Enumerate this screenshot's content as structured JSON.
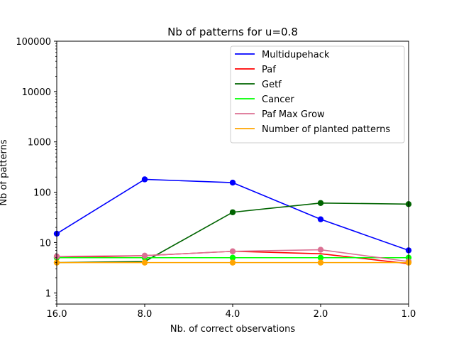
{
  "chart_data": {
    "type": "line",
    "title": "Nb of patterns for u=0.8",
    "xlabel": "Nb. of correct observations",
    "ylabel": "Nb of patterns",
    "x": [
      16.0,
      8.0,
      4.0,
      2.0,
      1.0
    ],
    "x_tick_labels": [
      "16.0",
      "8.0",
      "4.0",
      "2.0",
      "1.0"
    ],
    "x_scale": "log2-reversed",
    "y_scale": "log",
    "ylim": [
      0.6,
      100000
    ],
    "y_ticks": [
      1,
      10,
      100,
      1000,
      10000,
      100000
    ],
    "y_tick_labels": [
      "1",
      "10",
      "100",
      "1000",
      "10000",
      "100000"
    ],
    "grid": false,
    "legend_position": "top-right",
    "series": [
      {
        "name": "Multidupehack",
        "color": "#0000ff",
        "values": [
          15,
          180,
          155,
          29,
          7
        ],
        "markers": [
          true,
          true,
          true,
          true,
          true
        ]
      },
      {
        "name": "Paf",
        "color": "#ff0000",
        "values": [
          5,
          5.5,
          6.7,
          6,
          3.8
        ],
        "markers": [
          false,
          false,
          false,
          false,
          false
        ]
      },
      {
        "name": "Getf",
        "color": "#006400",
        "values": [
          4,
          4.2,
          40,
          61,
          58
        ],
        "markers": [
          false,
          false,
          true,
          true,
          true
        ]
      },
      {
        "name": "Cancer",
        "color": "#00ff00",
        "values": [
          5,
          5,
          5,
          5,
          5
        ],
        "markers": [
          true,
          true,
          true,
          true,
          true
        ]
      },
      {
        "name": "Paf Max Grow",
        "color": "#db7093",
        "values": [
          5.3,
          5.5,
          6.7,
          7.2,
          4.2
        ],
        "markers": [
          true,
          true,
          true,
          true,
          true
        ]
      },
      {
        "name": "Number of planted patterns",
        "color": "#ffa500",
        "values": [
          4,
          4,
          4,
          4,
          4
        ],
        "markers": [
          true,
          true,
          true,
          true,
          true
        ]
      }
    ]
  }
}
